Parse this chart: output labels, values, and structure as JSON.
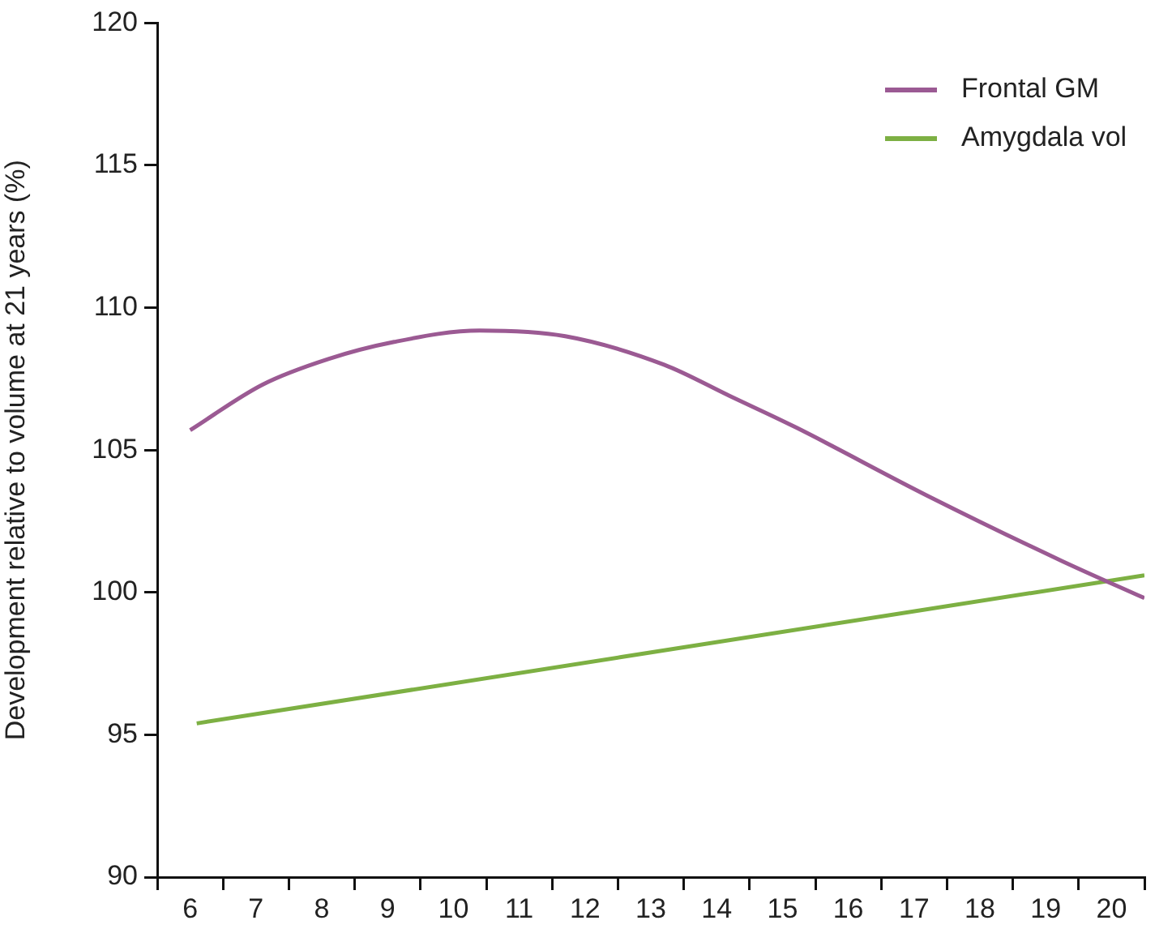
{
  "chart_data": {
    "type": "line",
    "ylabel": "Development relative to volume at 21 years (%)",
    "xlim": [
      5.5,
      20.5
    ],
    "xticks": [
      {
        "value": 5.5,
        "label": null
      },
      6,
      {
        "value": 6.5,
        "label": null
      },
      7,
      {
        "value": 7.5,
        "label": null
      },
      8,
      {
        "value": 8.5,
        "label": null
      },
      9,
      {
        "value": 9.5,
        "label": null
      },
      10,
      {
        "value": 10.5,
        "label": null
      },
      11,
      {
        "value": 11.5,
        "label": null
      },
      12,
      {
        "value": 12.5,
        "label": null
      },
      13,
      {
        "value": 13.5,
        "label": null
      },
      14,
      {
        "value": 14.5,
        "label": null
      },
      15,
      {
        "value": 15.5,
        "label": null
      },
      16,
      {
        "value": 16.5,
        "label": null
      },
      17,
      {
        "value": 17.5,
        "label": null
      },
      18,
      {
        "value": 18.5,
        "label": null
      },
      19,
      {
        "value": 19.5,
        "label": null
      },
      20,
      {
        "value": 20.5,
        "label": null
      }
    ],
    "ylim": [
      90,
      120
    ],
    "yticks": [
      90,
      95,
      100,
      105,
      110,
      115,
      120
    ],
    "grid": false,
    "legend": "top right",
    "marker": "none",
    "line_style": "solid",
    "series": [
      {
        "name": "Frontal GM",
        "color": "#9b5a93",
        "x": [
          6.0,
          7.1,
          8.1,
          9.1,
          10.4,
          11.7,
          13.2,
          14.2,
          15.2,
          17.2,
          19.25,
          20.5
        ],
        "values": [
          105.7,
          107.3,
          108.2,
          108.8,
          109.2,
          109.0,
          108.0,
          106.9,
          105.8,
          103.4,
          101.1,
          99.8
        ]
      },
      {
        "name": "Amygdala vol",
        "color": "#7db043",
        "x": [
          6.1,
          20.5
        ],
        "values": [
          95.4,
          100.6
        ]
      }
    ]
  }
}
